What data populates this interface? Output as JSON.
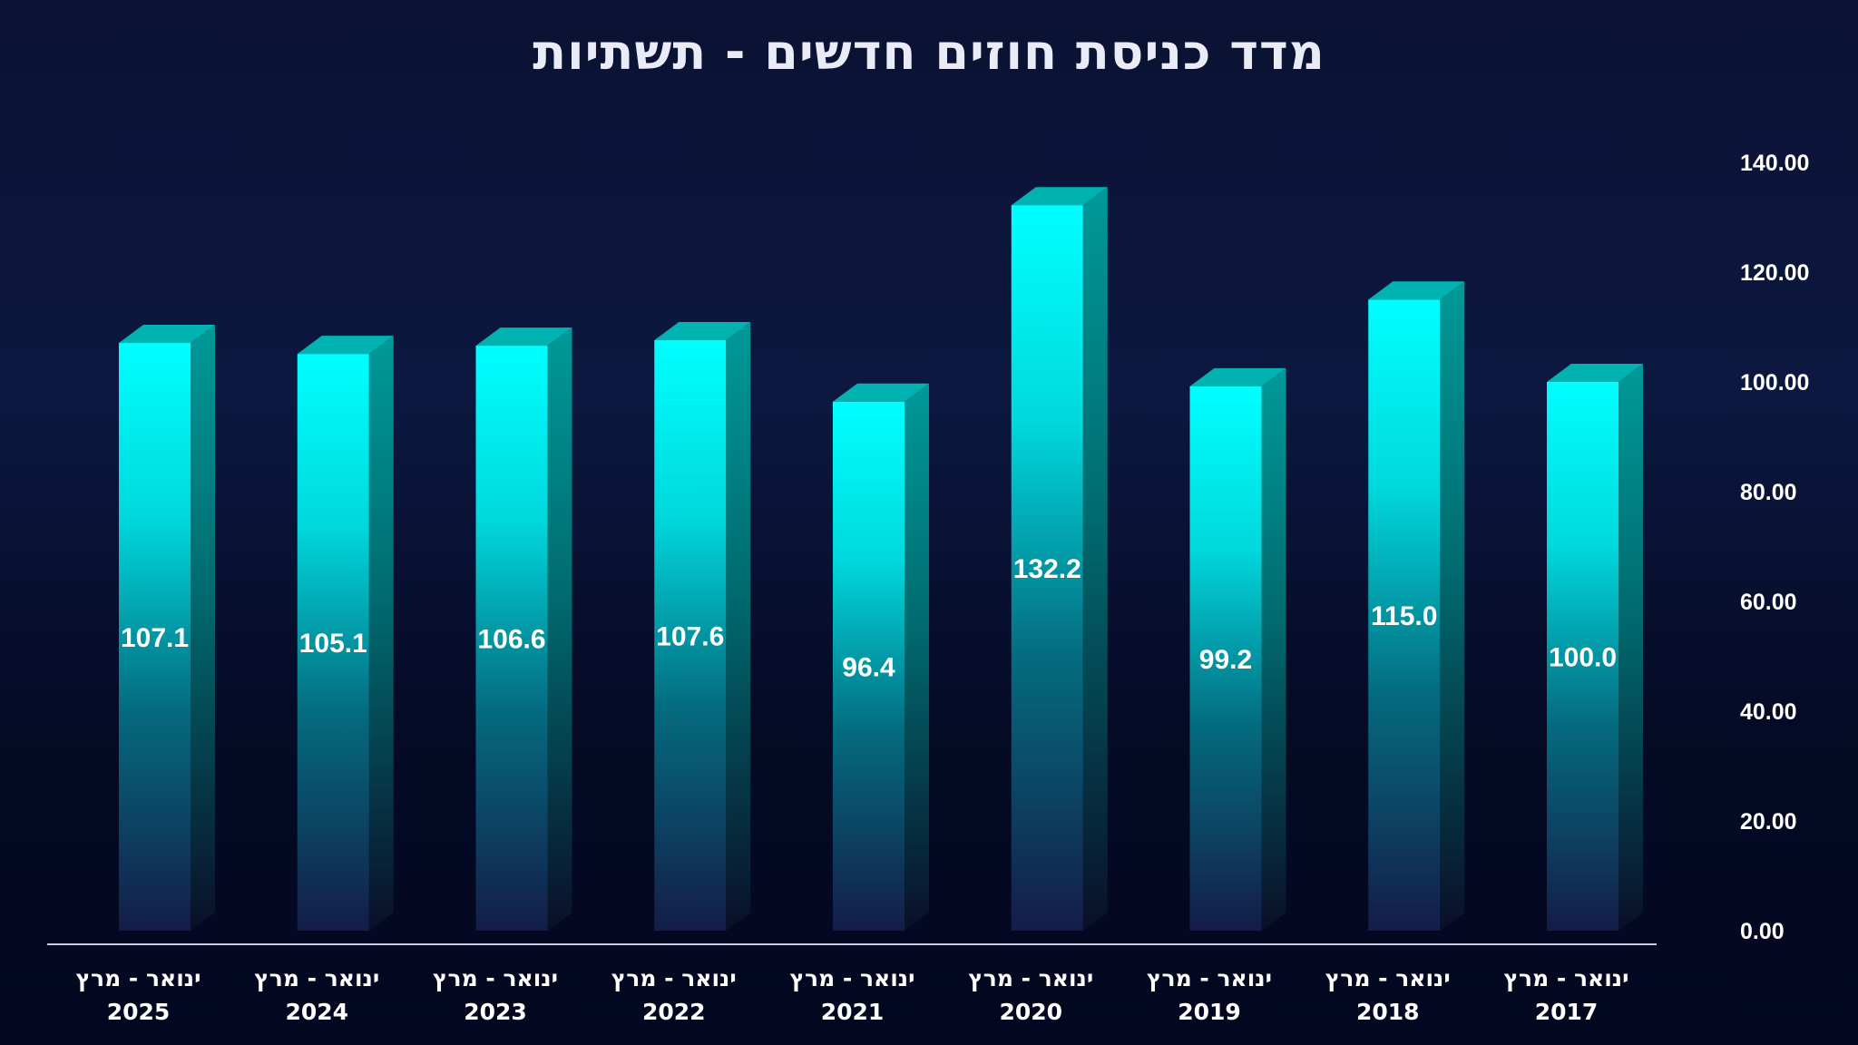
{
  "chart_data": {
    "type": "bar",
    "title": "מדד כניסת חוזים חדשים - תשתיות",
    "categories": [
      [
        "ינואר - מרץ",
        "2025"
      ],
      [
        "ינואר - מרץ",
        "2024"
      ],
      [
        "ינואר - מרץ",
        "2023"
      ],
      [
        "ינואר - מרץ",
        "2022"
      ],
      [
        "ינואר - מרץ",
        "2021"
      ],
      [
        "ינואר - מרץ",
        "2020"
      ],
      [
        "ינואר - מרץ",
        "2019"
      ],
      [
        "ינואר - מרץ",
        "2018"
      ],
      [
        "ינואר - מרץ",
        "2017"
      ]
    ],
    "values": [
      107.1,
      105.1,
      106.6,
      107.6,
      96.4,
      132.2,
      99.2,
      115.0,
      100.0
    ],
    "value_labels": [
      "107.1",
      "105.1",
      "106.6",
      "107.6",
      "96.4",
      "132.2",
      "99.2",
      "115.0",
      "100.0"
    ],
    "y_ticks": [
      "0.00",
      "20.00",
      "40.00",
      "60.00",
      "80.00",
      "100.00",
      "120.00",
      "140.00"
    ],
    "ylim": [
      0,
      140
    ],
    "y_axis_position": "right",
    "grid": false,
    "legend": "none",
    "colors": {
      "bar_top": "#00ffff",
      "bar_bottom": "#141c48",
      "bar_side": "#008e8e",
      "bar_cap": "#00b3b0",
      "baseline": "#c8cde0"
    }
  }
}
